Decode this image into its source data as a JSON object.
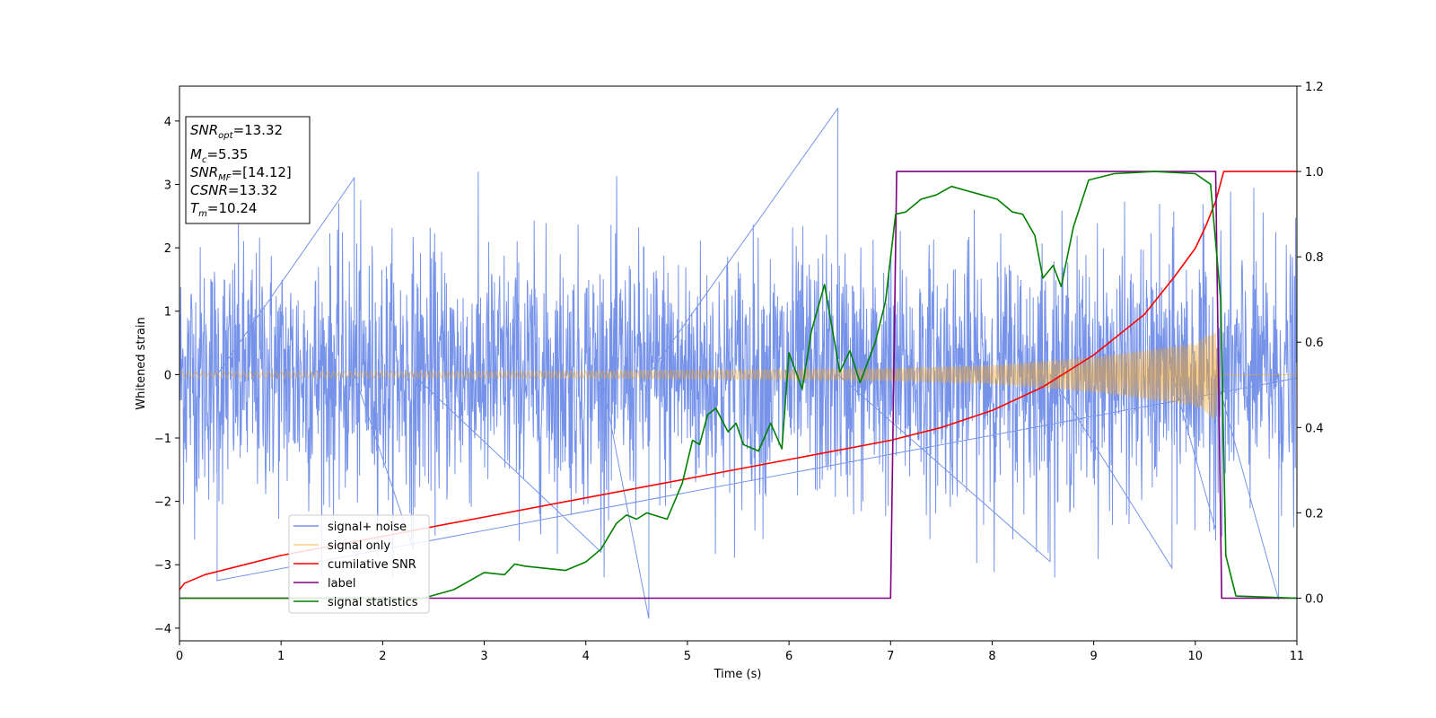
{
  "chart_data": {
    "type": "line",
    "title": "",
    "xlabel": "Time (s)",
    "ylabel": "Whitened strain",
    "y2label": "",
    "xlim": [
      0,
      11
    ],
    "ylim": [
      -4.2,
      4.55
    ],
    "y2lim": [
      -0.1,
      1.2
    ],
    "xticks": [
      0,
      1,
      2,
      3,
      4,
      5,
      6,
      7,
      8,
      9,
      10,
      11
    ],
    "yticks": [
      4,
      3,
      2,
      1,
      0,
      -1,
      -2,
      -3,
      -4
    ],
    "y2ticks": [
      1.2,
      1.0,
      0.8,
      0.6,
      0.4,
      0.2,
      0.0
    ],
    "grid": false,
    "legend_position": "lower-left",
    "annotation": {
      "lines": [
        {
          "base": "SNR",
          "sub": "opt",
          "rest": "=13.32"
        },
        {
          "base": "M",
          "sub": "c",
          "rest": "=5.35"
        },
        {
          "base": "SNR",
          "sub": "MF",
          "rest": "=[14.12]"
        },
        {
          "base": "CSNR",
          "sub": "",
          "rest": "=13.32"
        },
        {
          "base": "T",
          "sub": "m",
          "rest": "=10.24"
        }
      ]
    },
    "series": [
      {
        "name": "signal+ noise",
        "axis": "left",
        "color": "#4169e1",
        "style": "noise band",
        "envelope": {
          "typical_amplitude": 1.6,
          "peak_max": 4.2,
          "peak_min": -3.85
        },
        "spikes": [
          {
            "x": 0.37,
            "y": -3.25
          },
          {
            "x": 1.72,
            "y": 3.1
          },
          {
            "x": 2.3,
            "y": -2.75
          },
          {
            "x": 4.15,
            "y": -2.8
          },
          {
            "x": 4.62,
            "y": -3.85
          },
          {
            "x": 6.48,
            "y": 4.2
          },
          {
            "x": 8.57,
            "y": -2.95
          },
          {
            "x": 9.77,
            "y": -3.05
          },
          {
            "x": 10.2,
            "y": -2.45
          },
          {
            "x": 10.82,
            "y": -3.55
          }
        ]
      },
      {
        "name": "signal only",
        "axis": "left",
        "color": "#f5a623",
        "style": "chirp",
        "amplitude_envelope": [
          [
            0,
            0.05
          ],
          [
            2,
            0.05
          ],
          [
            4,
            0.06
          ],
          [
            6,
            0.08
          ],
          [
            7,
            0.1
          ],
          [
            8,
            0.15
          ],
          [
            9,
            0.28
          ],
          [
            10,
            0.5
          ],
          [
            10.2,
            0.72
          ],
          [
            10.24,
            0.0
          ],
          [
            11,
            0.0
          ]
        ]
      },
      {
        "name": "cumilative SNR",
        "axis": "right",
        "color": "#ff0000",
        "points": [
          [
            0,
            0.02
          ],
          [
            0.05,
            0.035
          ],
          [
            0.25,
            0.055
          ],
          [
            0.5,
            0.07
          ],
          [
            1,
            0.1
          ],
          [
            2,
            0.145
          ],
          [
            3,
            0.19
          ],
          [
            4,
            0.235
          ],
          [
            5,
            0.28
          ],
          [
            6,
            0.325
          ],
          [
            7,
            0.37
          ],
          [
            7.5,
            0.4
          ],
          [
            8,
            0.44
          ],
          [
            8.5,
            0.495
          ],
          [
            9,
            0.57
          ],
          [
            9.5,
            0.665
          ],
          [
            9.8,
            0.755
          ],
          [
            10,
            0.82
          ],
          [
            10.1,
            0.87
          ],
          [
            10.2,
            0.93
          ],
          [
            10.28,
            1.0
          ],
          [
            11,
            1.0
          ]
        ]
      },
      {
        "name": "label",
        "axis": "right",
        "color": "#800080",
        "points": [
          [
            0,
            0.0
          ],
          [
            7.0,
            0.0
          ],
          [
            7.06,
            1.0
          ],
          [
            10.2,
            1.0
          ],
          [
            10.26,
            0.0
          ],
          [
            11,
            0.0
          ]
        ]
      },
      {
        "name": "signal statistics",
        "axis": "right",
        "color": "#008000",
        "points": [
          [
            0,
            0.0
          ],
          [
            2.4,
            0.0
          ],
          [
            2.7,
            0.02
          ],
          [
            2.85,
            0.04
          ],
          [
            3.0,
            0.06
          ],
          [
            3.2,
            0.055
          ],
          [
            3.3,
            0.08
          ],
          [
            3.4,
            0.075
          ],
          [
            3.6,
            0.07
          ],
          [
            3.8,
            0.065
          ],
          [
            4.0,
            0.085
          ],
          [
            4.15,
            0.115
          ],
          [
            4.3,
            0.175
          ],
          [
            4.4,
            0.195
          ],
          [
            4.5,
            0.185
          ],
          [
            4.6,
            0.2
          ],
          [
            4.8,
            0.185
          ],
          [
            4.95,
            0.27
          ],
          [
            5.05,
            0.37
          ],
          [
            5.12,
            0.36
          ],
          [
            5.2,
            0.43
          ],
          [
            5.28,
            0.445
          ],
          [
            5.4,
            0.39
          ],
          [
            5.48,
            0.41
          ],
          [
            5.55,
            0.36
          ],
          [
            5.7,
            0.345
          ],
          [
            5.82,
            0.41
          ],
          [
            5.93,
            0.35
          ],
          [
            6.0,
            0.575
          ],
          [
            6.13,
            0.49
          ],
          [
            6.22,
            0.625
          ],
          [
            6.35,
            0.735
          ],
          [
            6.5,
            0.53
          ],
          [
            6.6,
            0.58
          ],
          [
            6.7,
            0.505
          ],
          [
            6.85,
            0.6
          ],
          [
            6.95,
            0.695
          ],
          [
            7.05,
            0.9
          ],
          [
            7.15,
            0.905
          ],
          [
            7.3,
            0.935
          ],
          [
            7.45,
            0.945
          ],
          [
            7.6,
            0.965
          ],
          [
            7.75,
            0.955
          ],
          [
            7.9,
            0.945
          ],
          [
            8.05,
            0.935
          ],
          [
            8.2,
            0.905
          ],
          [
            8.3,
            0.9
          ],
          [
            8.42,
            0.85
          ],
          [
            8.5,
            0.75
          ],
          [
            8.6,
            0.78
          ],
          [
            8.68,
            0.73
          ],
          [
            8.8,
            0.87
          ],
          [
            8.95,
            0.98
          ],
          [
            9.2,
            0.995
          ],
          [
            9.6,
            1.0
          ],
          [
            10.0,
            0.995
          ],
          [
            10.15,
            0.97
          ],
          [
            10.25,
            0.7
          ],
          [
            10.3,
            0.1
          ],
          [
            10.4,
            0.005
          ],
          [
            11,
            0.0
          ]
        ]
      }
    ]
  }
}
